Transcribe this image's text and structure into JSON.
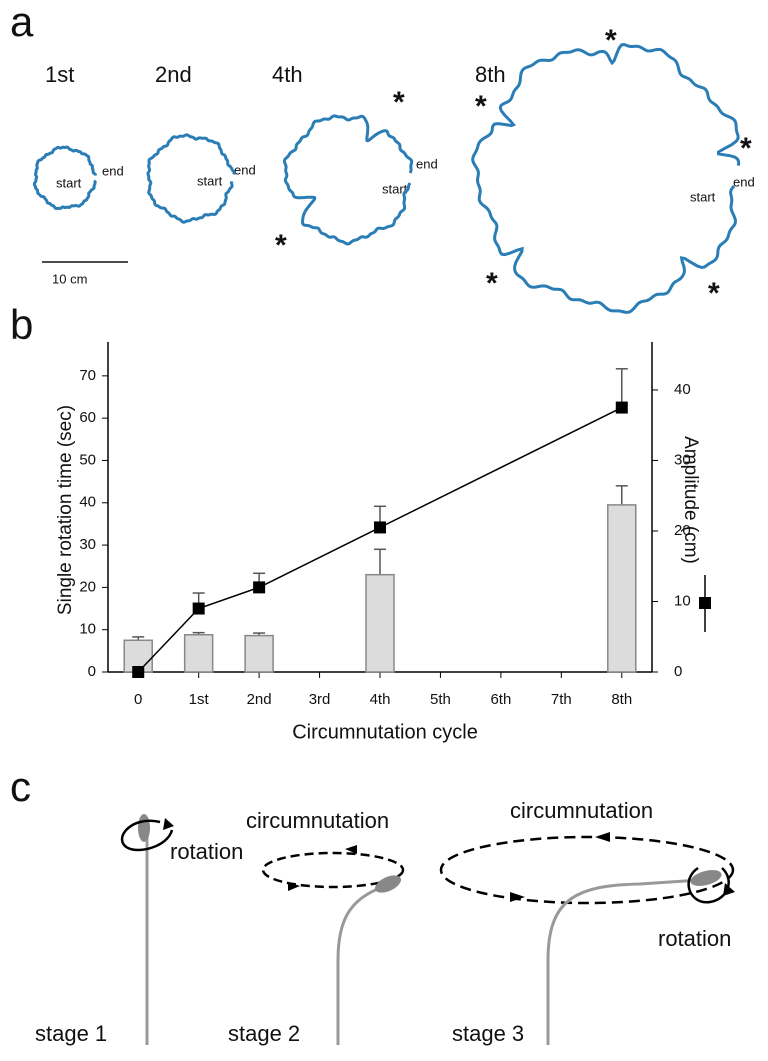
{
  "panel_labels": [
    "a",
    "b",
    "c"
  ],
  "panel_a": {
    "trajectories": [
      {
        "label": "1st",
        "start": "start",
        "end": "end",
        "stars": []
      },
      {
        "label": "2nd",
        "start": "start",
        "end": "end",
        "stars": []
      },
      {
        "label": "4th",
        "start": "start",
        "end": "end",
        "stars": [
          "*",
          "*"
        ]
      },
      {
        "label": "8th",
        "start": "start",
        "end": "end",
        "stars": [
          "*",
          "*",
          "*",
          "*",
          "*"
        ]
      }
    ],
    "scale_bar": "10 cm"
  },
  "chart_data": {
    "type": "bar",
    "xlabel": "Circumnutation cycle",
    "ylabel": "Single  rotation  time (sec)",
    "y2label": "Amplitude (cm)",
    "xlim": [
      -0.5,
      8.5
    ],
    "xticks": [
      0,
      {
        "value": 1,
        "label": "1st"
      },
      {
        "value": 2,
        "label": "2nd"
      },
      {
        "value": 3,
        "label": "3rd"
      },
      {
        "value": 4,
        "label": "4th"
      },
      {
        "value": 5,
        "label": "5th"
      },
      {
        "value": 6,
        "label": "6th"
      },
      {
        "value": 7,
        "label": "7th"
      },
      {
        "value": 8,
        "label": "8th"
      }
    ],
    "ylim": [
      0,
      78
    ],
    "yticks": [
      0,
      10,
      20,
      30,
      40,
      50,
      60,
      70
    ],
    "y2lim": [
      0,
      46.8
    ],
    "y2ticks": [
      0,
      10,
      20,
      30,
      40
    ],
    "series": [
      {
        "type": "bar",
        "color": "#dcdcdc",
        "x": [
          0,
          1,
          2,
          4,
          8
        ],
        "values": [
          7.5,
          8.8,
          8.6,
          23,
          39.5
        ],
        "errors": [
          0.8,
          0.5,
          0.6,
          6,
          4.5
        ]
      },
      {
        "type": "line",
        "axis": "y2",
        "color": "#000000",
        "x": [
          0,
          1,
          2,
          4,
          8
        ],
        "values": [
          0,
          9,
          12,
          20.5,
          37.5
        ],
        "errors": [
          0,
          2.2,
          2,
          3,
          5.5
        ]
      }
    ]
  },
  "panel_c": {
    "stages": [
      {
        "label": "stage 1",
        "rotation": "rotation"
      },
      {
        "label": "stage 2",
        "circumnutation": "circumnutation"
      },
      {
        "label": "stage 3",
        "circumnutation": "circumnutation",
        "rotation": "rotation"
      }
    ]
  }
}
